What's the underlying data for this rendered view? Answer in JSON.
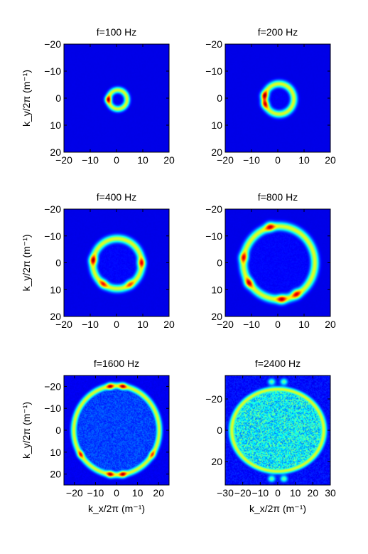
{
  "chart_data": [
    {
      "type": "heatmap",
      "title": "f=100 Hz",
      "xlabel": "",
      "ylabel": "k_y/2π (m⁻¹)",
      "xlim": [
        -20,
        20
      ],
      "ylim": [
        -20,
        20
      ],
      "y_direction": "reversed",
      "xticks": [
        "−20",
        "−10",
        "0",
        "10",
        "20"
      ],
      "yticks": [
        "−20",
        "−10",
        "0",
        "10",
        "20"
      ],
      "ring": {
        "center_kx": 0.5,
        "center_ky": 0.5,
        "radius": 3.5,
        "width": 1.1
      },
      "hotspots": [
        {
          "kx": -3.2,
          "ky": 0.5,
          "intensity": 1.0
        }
      ],
      "interior_fill": 0.02,
      "colormap": "jet"
    },
    {
      "type": "heatmap",
      "title": "f=200 Hz",
      "xlabel": "",
      "ylabel": "",
      "xlim": [
        -20,
        20
      ],
      "ylim": [
        -20,
        20
      ],
      "y_direction": "reversed",
      "xticks": [
        "−20",
        "−10",
        "0",
        "10",
        "20"
      ],
      "yticks": [
        "−20",
        "−10",
        "0",
        "10",
        "20"
      ],
      "ring": {
        "center_kx": 0.5,
        "center_ky": 0.3,
        "radius": 5.6,
        "width": 1.3
      },
      "hotspots": [
        {
          "kx": -5.0,
          "ky": -1.0,
          "intensity": 1.0
        },
        {
          "kx": -4.8,
          "ky": 2.2,
          "intensity": 0.85
        }
      ],
      "interior_fill": 0.02,
      "colormap": "jet"
    },
    {
      "type": "heatmap",
      "title": "f=400 Hz",
      "xlabel": "",
      "ylabel": "k_y/2π (m⁻¹)",
      "xlim": [
        -20,
        20
      ],
      "ylim": [
        -20,
        20
      ],
      "y_direction": "reversed",
      "xticks": [
        "−20",
        "−10",
        "0",
        "10",
        "20"
      ],
      "yticks": [
        "−20",
        "−10",
        "0",
        "10",
        "20"
      ],
      "ring": {
        "center_kx": 0.3,
        "center_ky": 0.3,
        "radius": 9.3,
        "width": 1.4
      },
      "hotspots": [
        {
          "kx": -8.8,
          "ky": -1.0,
          "intensity": 0.95
        },
        {
          "kx": 9.4,
          "ky": 0.0,
          "intensity": 0.8
        },
        {
          "kx": -5.0,
          "ky": 7.8,
          "intensity": 0.7
        },
        {
          "kx": 5.0,
          "ky": 7.8,
          "intensity": 0.6
        }
      ],
      "interior_fill": 0.03,
      "colormap": "jet"
    },
    {
      "type": "heatmap",
      "title": "f=800 Hz",
      "xlabel": "",
      "ylabel": "",
      "xlim": [
        -20,
        20
      ],
      "ylim": [
        -20,
        20
      ],
      "y_direction": "reversed",
      "xticks": [
        "−20",
        "−10",
        "0",
        "10",
        "20"
      ],
      "yticks": [
        "−20",
        "−10",
        "0",
        "10",
        "20"
      ],
      "ring": {
        "center_kx": 0.5,
        "center_ky": 0.0,
        "radius": 13.6,
        "width": 1.5
      },
      "hotspots": [
        {
          "kx": -3.0,
          "ky": -13.5,
          "intensity": 0.9
        },
        {
          "kx": -11.0,
          "ky": 7.5,
          "intensity": 0.9
        },
        {
          "kx": 1.5,
          "ky": 13.6,
          "intensity": 0.9
        },
        {
          "kx": 7.0,
          "ky": 11.5,
          "intensity": 0.85
        },
        {
          "kx": -13.0,
          "ky": -2.0,
          "intensity": 0.8
        }
      ],
      "interior_fill": 0.03,
      "colormap": "jet"
    },
    {
      "type": "heatmap",
      "title": "f=1600 Hz",
      "xlabel": "k_x/2π (m⁻¹)",
      "ylabel": "k_y/2π (m⁻¹)",
      "xlim": [
        -25,
        25
      ],
      "ylim": [
        -25,
        25
      ],
      "y_direction": "reversed",
      "xticks": [
        "−20",
        "−10",
        "0",
        "10",
        "20"
      ],
      "yticks": [
        "−20",
        "−10",
        "0",
        "10",
        "20"
      ],
      "ring": {
        "center_kx": 0.0,
        "center_ky": 0.0,
        "radius": 20.3,
        "width": 1.4
      },
      "hotspots": [
        {
          "kx": -3.0,
          "ky": -20.0,
          "intensity": 0.95
        },
        {
          "kx": 3.0,
          "ky": -20.0,
          "intensity": 0.95
        },
        {
          "kx": -3.0,
          "ky": 20.0,
          "intensity": 0.95
        },
        {
          "kx": 3.0,
          "ky": 20.0,
          "intensity": 0.95
        },
        {
          "kx": -17.0,
          "ky": 11.0,
          "intensity": 0.75
        },
        {
          "kx": 17.0,
          "ky": 11.0,
          "intensity": 0.6
        }
      ],
      "interior_fill": 0.1,
      "colormap": "jet"
    },
    {
      "type": "heatmap",
      "title": "f=2400 Hz",
      "xlabel": "k_x/2π (m⁻¹)",
      "ylabel": "",
      "xlim": [
        -30,
        30
      ],
      "ylim": [
        -35,
        35
      ],
      "y_direction": "reversed",
      "xticks": [
        "−30",
        "−20",
        "−10",
        "0",
        "10",
        "20",
        "30"
      ],
      "yticks": [
        "−20",
        "0",
        "20"
      ],
      "ring": {
        "center_kx": 0.0,
        "center_ky": 0.0,
        "radius": 26.2,
        "width": 1.8
      },
      "hotspots": [
        {
          "kx": -3.5,
          "ky": -31.0,
          "intensity": 0.95
        },
        {
          "kx": 3.5,
          "ky": -31.0,
          "intensity": 0.95
        },
        {
          "kx": -3.5,
          "ky": 31.0,
          "intensity": 0.95
        },
        {
          "kx": 3.5,
          "ky": 31.0,
          "intensity": 0.95
        }
      ],
      "interior_fill": 0.3,
      "colormap": "jet"
    }
  ]
}
